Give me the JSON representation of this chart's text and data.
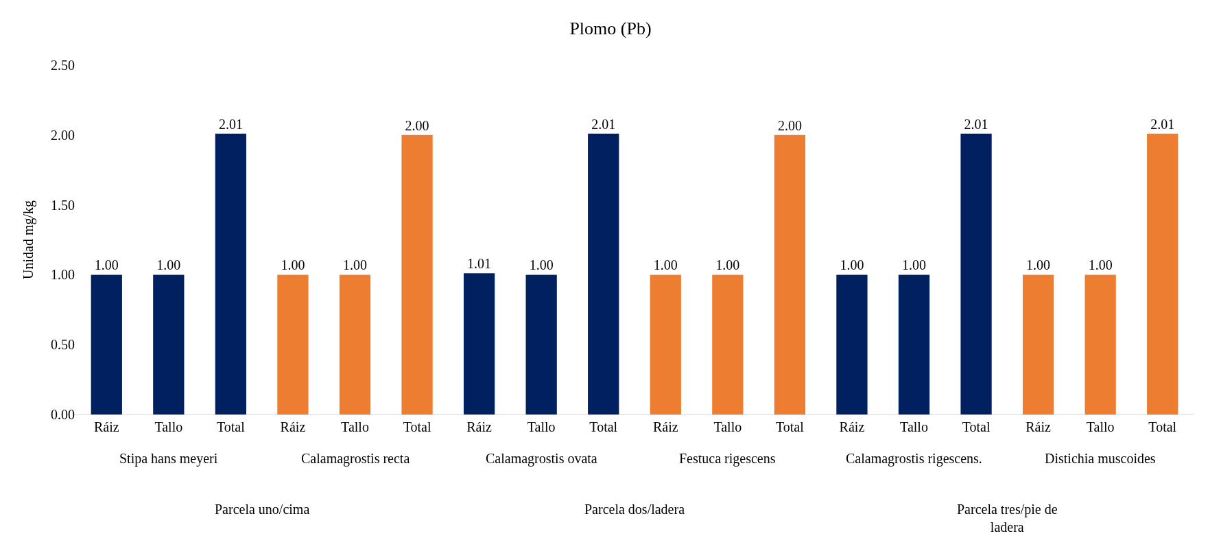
{
  "chart_data": {
    "type": "bar",
    "title": "Plomo (Pb)",
    "ylabel": "Unidad mg/kg",
    "categories": [
      "Ráiz",
      "Tallo",
      "Total",
      "Ráiz",
      "Tallo",
      "Total",
      "Ráiz",
      "Tallo",
      "Total",
      "Ráiz",
      "Tallo",
      "Total",
      "Ráiz",
      "Tallo",
      "Total",
      "Ráiz",
      "Tallo",
      "Total"
    ],
    "values": [
      1.0,
      1.0,
      2.01,
      1.0,
      1.0,
      2.0,
      1.01,
      1.0,
      2.01,
      1.0,
      1.0,
      2.0,
      1.0,
      1.0,
      2.01,
      1.0,
      1.0,
      2.01
    ],
    "value_labels": [
      "1.00",
      "1.00",
      "2.01",
      "1.00",
      "1.00",
      "2.00",
      "1.01",
      "1.00",
      "2.01",
      "1.00",
      "1.00",
      "2.00",
      "1.00",
      "1.00",
      "2.01",
      "1.00",
      "1.00",
      "2.01"
    ],
    "colors": [
      "#002060",
      "#002060",
      "#002060",
      "#ed7d31",
      "#ed7d31",
      "#ed7d31",
      "#002060",
      "#002060",
      "#002060",
      "#ed7d31",
      "#ed7d31",
      "#ed7d31",
      "#002060",
      "#002060",
      "#002060",
      "#ed7d31",
      "#ed7d31",
      "#ed7d31"
    ],
    "ylim": [
      0,
      2.5
    ],
    "yticks": [
      {
        "value": 0,
        "label": "0.00"
      },
      {
        "value": 0.5,
        "label": "0.50"
      },
      {
        "value": 1,
        "label": "1.00"
      },
      {
        "value": 1.5,
        "label": "1.50"
      },
      {
        "value": 2,
        "label": "2.00"
      },
      {
        "value": 2.5,
        "label": "2.50"
      }
    ],
    "grid": false,
    "annotations": [
      "Stipa hans meyeri",
      "Calamagrostis recta",
      "Calamagrostis ovata",
      "Festuca rigescens",
      "Calamagrostis rigescens.",
      "Distichia muscoides",
      "Parcela uno/cima",
      "Parcela dos/ladera",
      "Parcela tres/pie de ladera"
    ]
  }
}
